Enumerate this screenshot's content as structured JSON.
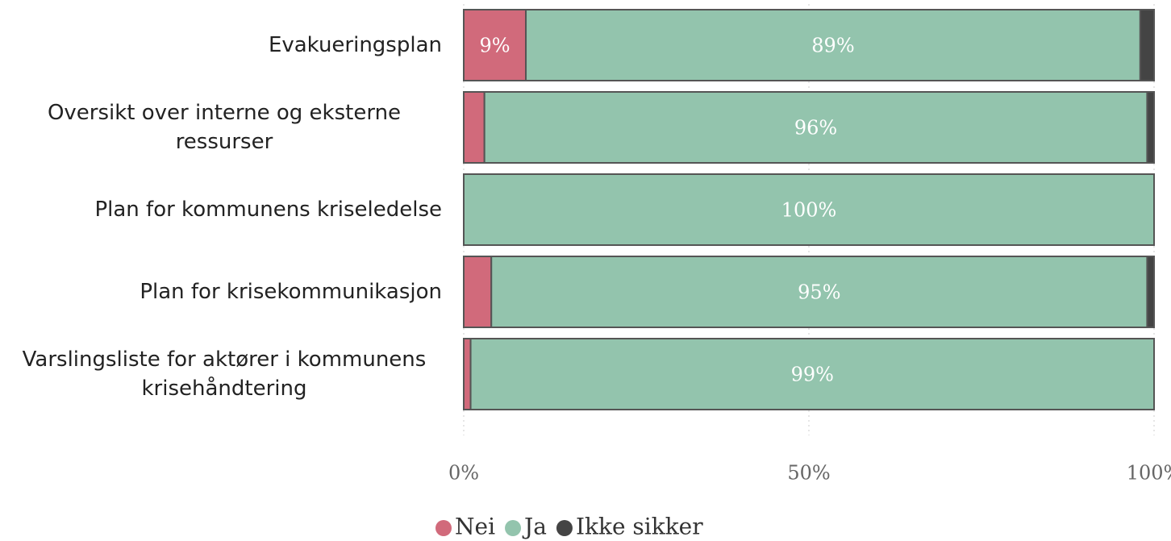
{
  "chart_data": {
    "type": "stacked-bar-horizontal",
    "categories": [
      "Evakueringsplan",
      "Oversikt over interne og eksterne ressurser",
      "Plan for kommunens kriseledelse",
      "Plan for krisekommunikasjon",
      "Varslingsliste for aktører i kommunens krisehåndtering"
    ],
    "series": [
      {
        "name": "Nei",
        "color": "#d16a7b",
        "values": [
          9,
          3,
          0,
          4,
          1
        ],
        "value_labels": [
          "9%",
          null,
          null,
          null,
          null
        ]
      },
      {
        "name": "Ja",
        "color": "#93c4ad",
        "values": [
          89,
          96,
          100,
          95,
          99
        ],
        "value_labels": [
          "89%",
          "96%",
          "100%",
          "95%",
          "99%"
        ]
      },
      {
        "name": "Ikke sikker",
        "color": "#444444",
        "values": [
          2,
          1,
          0,
          1,
          0
        ]
      }
    ],
    "xlim": [
      0,
      100
    ],
    "xticks": [
      {
        "value": 0,
        "label": "0%"
      },
      {
        "value": 50,
        "label": "50%"
      },
      {
        "value": 100,
        "label": "100%"
      }
    ],
    "grid": true,
    "legend": "bottom"
  }
}
